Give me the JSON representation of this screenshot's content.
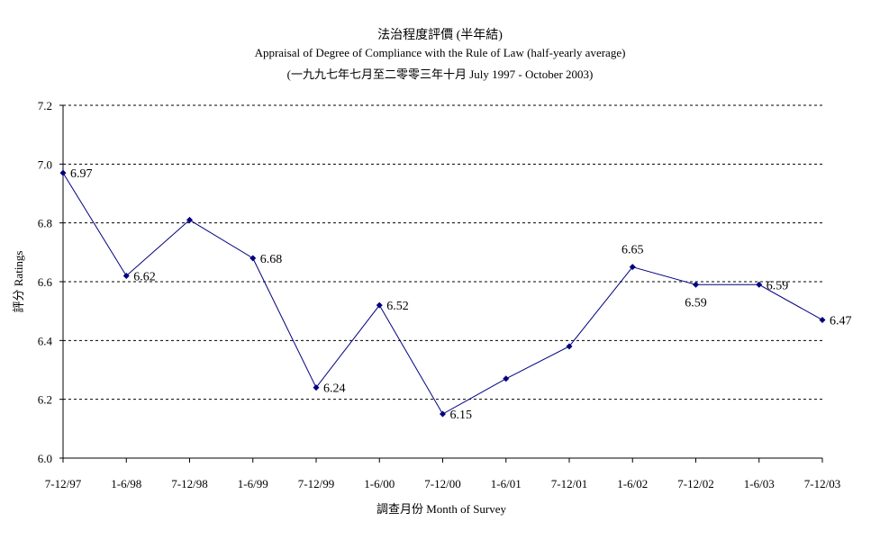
{
  "chart_data": {
    "type": "line",
    "title": "法治程度評價 (半年結)",
    "subtitle": "Appraisal of Degree of Compliance with the Rule of Law (half-yearly average)",
    "subtitle2": "(一九九七年七月至二零零三年十月 July 1997 - October 2003)",
    "xlabel": "調查月份 Month of Survey",
    "ylabel": "評分 Ratings",
    "categories": [
      "7-12/97",
      "1-6/98",
      "7-12/98",
      "1-6/99",
      "7-12/99",
      "1-6/00",
      "7-12/00",
      "1-6/01",
      "7-12/01",
      "1-6/02",
      "7-12/02",
      "1-6/03",
      "7-12/03"
    ],
    "values": [
      6.97,
      6.62,
      6.81,
      6.68,
      6.24,
      6.52,
      6.15,
      6.27,
      6.38,
      6.65,
      6.59,
      6.59,
      6.47
    ],
    "data_labels": [
      "6.97",
      "6.62",
      "",
      "6.68",
      "6.24",
      "6.52",
      "6.15",
      "",
      "",
      "6.65",
      "6.59",
      "6.59",
      "6.47"
    ],
    "ylim": [
      6.0,
      7.2
    ],
    "yticks": [
      "6.0",
      "6.2",
      "6.4",
      "6.6",
      "6.8",
      "7.0",
      "7.2"
    ],
    "grid": true,
    "grid_style": "dashed",
    "legend": "none",
    "line_color": "#00007f",
    "marker": "diamond"
  }
}
